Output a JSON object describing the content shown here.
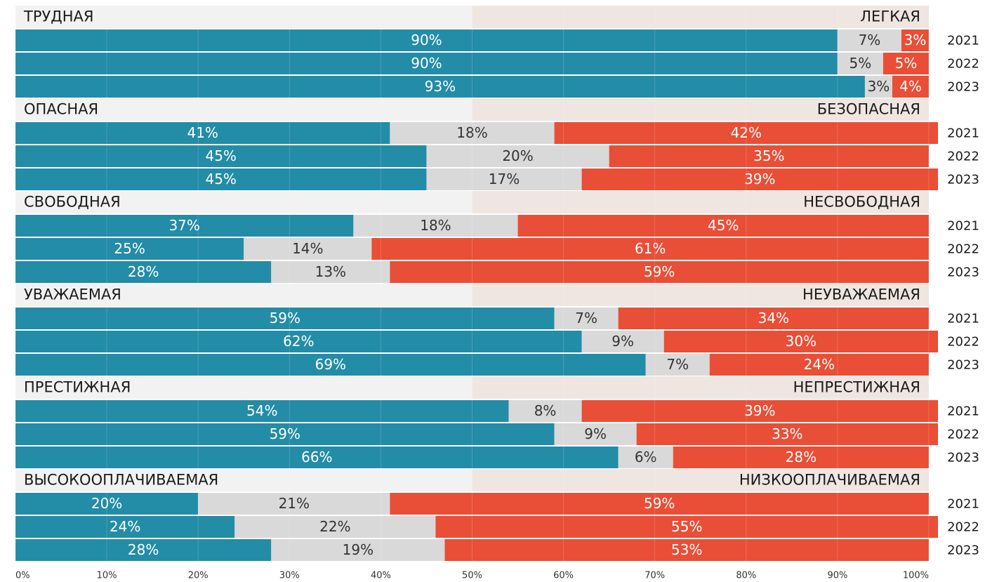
{
  "chart_data": {
    "type": "stacked_bar_groups",
    "xlim": [
      0,
      100
    ],
    "xticks": [
      {
        "value": 0,
        "label": "0%"
      },
      {
        "value": 10,
        "label": "10%"
      },
      {
        "value": 20,
        "label": "20%"
      },
      {
        "value": 30,
        "label": "30%"
      },
      {
        "value": 40,
        "label": "40%"
      },
      {
        "value": 50,
        "label": "50%"
      },
      {
        "value": 60,
        "label": "60%"
      },
      {
        "value": 70,
        "label": "70%"
      },
      {
        "value": 80,
        "label": "80%"
      },
      {
        "value": 90,
        "label": "90%"
      },
      {
        "value": 100,
        "label": "100%"
      }
    ],
    "grid": true,
    "groups": [
      {
        "left_label": "ТРУДНАЯ",
        "right_label": "ЛЕГКАЯ",
        "categories": [
          "2021",
          "2022",
          "2023"
        ],
        "series": [
          {
            "color": "#238ca7",
            "values": [
              90,
              90,
              93
            ],
            "value_labels": [
              "90%",
              "90%",
              "93%"
            ]
          },
          {
            "color": "#d9d9d9",
            "values": [
              7,
              5,
              3
            ],
            "value_labels": [
              "7%",
              "5%",
              "3%"
            ]
          },
          {
            "color": "#e94e36",
            "values": [
              3,
              5,
              4
            ],
            "value_labels": [
              "3%",
              "5%",
              "4%"
            ]
          }
        ]
      },
      {
        "left_label": "ОПАСНАЯ",
        "right_label": "БЕЗОПАСНАЯ",
        "categories": [
          "2021",
          "2022",
          "2023"
        ],
        "series": [
          {
            "color": "#238ca7",
            "values": [
              41,
              45,
              45
            ],
            "value_labels": [
              "41%",
              "45%",
              "45%"
            ]
          },
          {
            "color": "#d9d9d9",
            "values": [
              18,
              20,
              17
            ],
            "value_labels": [
              "18%",
              "20%",
              "17%"
            ]
          },
          {
            "color": "#e94e36",
            "values": [
              42,
              35,
              39
            ],
            "value_labels": [
              "42%",
              "35%",
              "39%"
            ]
          }
        ]
      },
      {
        "left_label": "СВОБОДНАЯ",
        "right_label": "НЕСВОБОДНАЯ",
        "categories": [
          "2021",
          "2022",
          "2023"
        ],
        "series": [
          {
            "color": "#238ca7",
            "values": [
              37,
              25,
              28
            ],
            "value_labels": [
              "37%",
              "25%",
              "28%"
            ]
          },
          {
            "color": "#d9d9d9",
            "values": [
              18,
              14,
              13
            ],
            "value_labels": [
              "18%",
              "14%",
              "13%"
            ]
          },
          {
            "color": "#e94e36",
            "values": [
              45,
              61,
              59
            ],
            "value_labels": [
              "45%",
              "61%",
              "59%"
            ]
          }
        ]
      },
      {
        "left_label": "УВАЖАЕМАЯ",
        "right_label": "НЕУВАЖАЕМАЯ",
        "categories": [
          "2021",
          "2022",
          "2023"
        ],
        "series": [
          {
            "color": "#238ca7",
            "values": [
              59,
              62,
              69
            ],
            "value_labels": [
              "59%",
              "62%",
              "69%"
            ]
          },
          {
            "color": "#d9d9d9",
            "values": [
              7,
              9,
              7
            ],
            "value_labels": [
              "7%",
              "9%",
              "7%"
            ]
          },
          {
            "color": "#e94e36",
            "values": [
              34,
              30,
              24
            ],
            "value_labels": [
              "34%",
              "30%",
              "24%"
            ]
          }
        ]
      },
      {
        "left_label": "ПРЕСТИЖНАЯ",
        "right_label": "НЕПРЕСТИЖНАЯ",
        "categories": [
          "2021",
          "2022",
          "2023"
        ],
        "series": [
          {
            "color": "#238ca7",
            "values": [
              54,
              59,
              66
            ],
            "value_labels": [
              "54%",
              "59%",
              "66%"
            ]
          },
          {
            "color": "#d9d9d9",
            "values": [
              8,
              9,
              6
            ],
            "value_labels": [
              "8%",
              "9%",
              "6%"
            ]
          },
          {
            "color": "#e94e36",
            "values": [
              39,
              33,
              28
            ],
            "value_labels": [
              "39%",
              "33%",
              "28%"
            ]
          }
        ]
      },
      {
        "left_label": "ВЫСОКООПЛАЧИВАЕМАЯ",
        "right_label": "НИЗКООПЛАЧИВАЕМАЯ",
        "categories": [
          "2021",
          "2022",
          "2023"
        ],
        "series": [
          {
            "color": "#238ca7",
            "values": [
              20,
              24,
              28
            ],
            "value_labels": [
              "20%",
              "24%",
              "28%"
            ]
          },
          {
            "color": "#d9d9d9",
            "values": [
              21,
              22,
              19
            ],
            "value_labels": [
              "21%",
              "22%",
              "19%"
            ]
          },
          {
            "color": "#e94e36",
            "values": [
              59,
              55,
              53
            ],
            "value_labels": [
              "59%",
              "55%",
              "53%"
            ]
          }
        ]
      }
    ]
  }
}
